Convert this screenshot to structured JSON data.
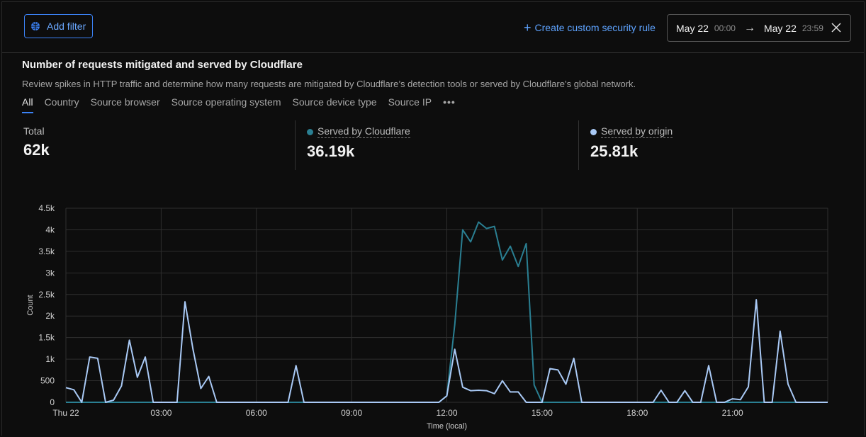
{
  "topbar": {
    "add_filter_label": "Add filter",
    "create_rule_label": "Create custom security rule",
    "date_range": {
      "start_date": "May 22",
      "start_time": "00:00",
      "end_date": "May 22",
      "end_time": "23:59"
    }
  },
  "section": {
    "title": "Number of requests mitigated and served by Cloudflare",
    "subtitle": "Review spikes in HTTP traffic and determine how many requests are mitigated by Cloudflare’s detection tools or served by Cloudflare’s global network.",
    "tabs": [
      "All",
      "Country",
      "Source browser",
      "Source operating system",
      "Source device type",
      "Source IP",
      "•••"
    ],
    "active_tab": "All"
  },
  "stats": {
    "total": {
      "label": "Total",
      "value": "62k"
    },
    "cloudflare": {
      "label": "Served by Cloudflare",
      "value": "36.19k",
      "color": "#2a7f92"
    },
    "origin": {
      "label": "Served by origin",
      "value": "25.81k",
      "color": "#a9c9f5"
    }
  },
  "chart_data": {
    "type": "line",
    "xlabel": "Time (local)",
    "ylabel": "Count",
    "ylim": [
      0,
      4500
    ],
    "y_ticks": [
      "0",
      "500",
      "1k",
      "1.5k",
      "2k",
      "2.5k",
      "3k",
      "3.5k",
      "4k",
      "4.5k"
    ],
    "x_ticks": [
      "Thu 22",
      "03:00",
      "06:00",
      "09:00",
      "12:00",
      "15:00",
      "18:00",
      "21:00"
    ],
    "x_range_hours": [
      0,
      24
    ],
    "grid": true,
    "series": [
      {
        "name": "Served by Cloudflare",
        "color": "#2a7f92",
        "x_hours": [
          0,
          11.75,
          12,
          12.25,
          12.5,
          12.75,
          13,
          13.25,
          13.5,
          13.75,
          14,
          14.25,
          14.5,
          14.75,
          15,
          15.25,
          15.5,
          15.75,
          24
        ],
        "values": [
          0,
          0,
          150,
          1800,
          4000,
          3720,
          4180,
          4030,
          4080,
          3300,
          3620,
          3150,
          3680,
          400,
          0,
          0,
          0,
          0,
          0
        ]
      },
      {
        "name": "Served by origin",
        "color": "#a9c9f5",
        "x_hours": [
          0,
          0.25,
          0.5,
          0.75,
          1,
          1.25,
          1.5,
          1.75,
          2,
          2.25,
          2.5,
          2.75,
          3,
          3.25,
          3.5,
          3.75,
          4,
          4.25,
          4.5,
          4.75,
          5,
          6,
          6.5,
          7,
          7.25,
          7.5,
          8,
          11.75,
          12,
          12.25,
          12.5,
          12.75,
          13,
          13.25,
          13.5,
          13.75,
          14,
          14.25,
          14.5,
          14.75,
          15,
          15.25,
          15.5,
          15.75,
          16,
          16.25,
          16.5,
          16.75,
          17,
          17.25,
          18,
          18.5,
          18.75,
          19,
          19.25,
          19.5,
          19.75,
          20,
          20.25,
          20.5,
          20.75,
          21,
          21.25,
          21.5,
          21.75,
          22,
          22.25,
          22.5,
          22.75,
          23,
          23.5,
          24
        ],
        "values": [
          340,
          290,
          0,
          1050,
          1020,
          0,
          50,
          380,
          1440,
          580,
          1050,
          0,
          0,
          0,
          0,
          2330,
          1240,
          320,
          600,
          0,
          0,
          0,
          0,
          0,
          850,
          0,
          0,
          0,
          150,
          1230,
          350,
          270,
          280,
          270,
          200,
          500,
          240,
          240,
          0,
          0,
          0,
          780,
          750,
          420,
          1020,
          0,
          0,
          0,
          0,
          0,
          0,
          0,
          280,
          0,
          0,
          270,
          0,
          0,
          850,
          0,
          0,
          80,
          60,
          360,
          2380,
          0,
          0,
          1650,
          420,
          0,
          0,
          0
        ]
      }
    ]
  }
}
